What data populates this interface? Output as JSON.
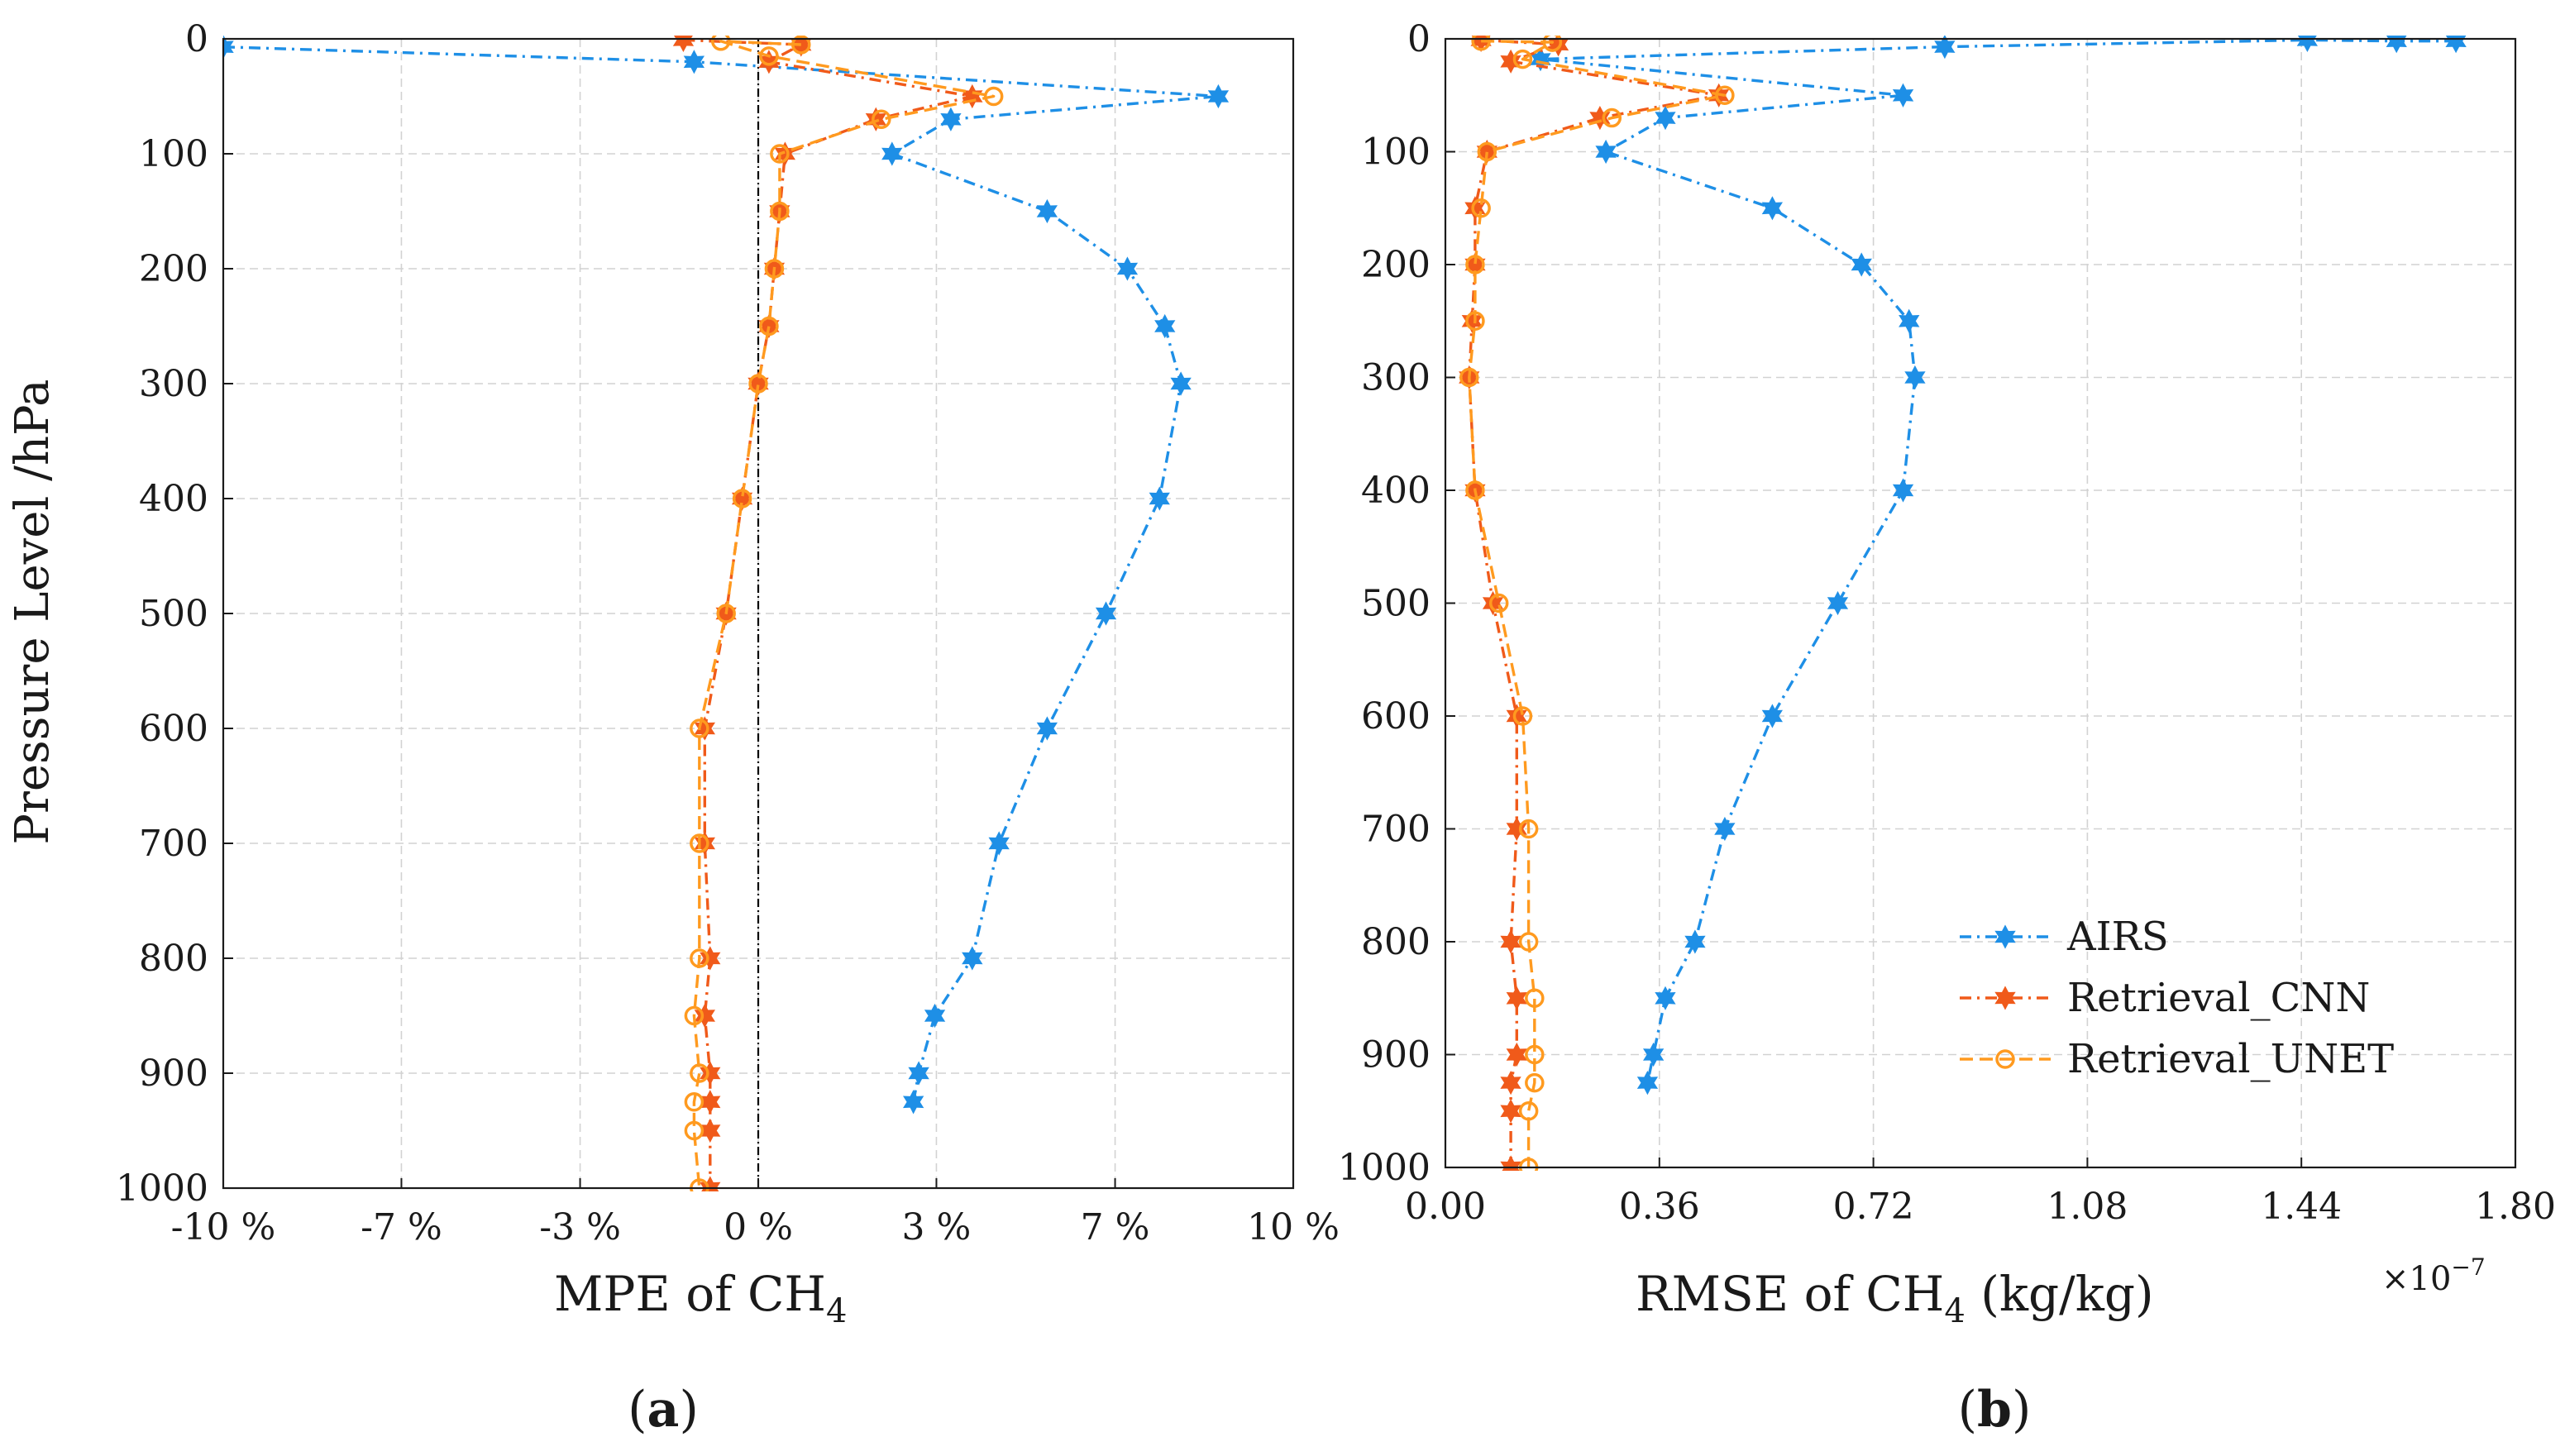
{
  "figure": {
    "y_axis_title": "Pressure Level /hPa",
    "left_xlabel_prefix": "MPE of CH",
    "right_xlabel_prefix": "RMSE of CH",
    "right_xlabel_suffix": " (kg/kg)",
    "ch_subscript": "4",
    "multiplier_base": "×10",
    "multiplier_exp": "−7",
    "panel_a_label": "a",
    "panel_b_label": "b",
    "colors": {
      "airs": "#1e8fe6",
      "cnn": "#f05a1a",
      "unet": "#ff9a1f",
      "grid": "#d2d2d2",
      "zero_line": "#000000"
    }
  },
  "chart_data": [
    {
      "type": "line",
      "panel": "a",
      "title": "",
      "xlabel": "MPE of CH4",
      "ylabel": "Pressure Level /hPa",
      "xlim": [
        -10,
        10
      ],
      "ylim": [
        1000,
        0
      ],
      "y_inverted": true,
      "grid": true,
      "reference_line_x": 0,
      "xticks": [
        -10,
        -6.67,
        -3.33,
        0,
        3.33,
        6.67,
        10
      ],
      "xtick_labels": [
        "-10 %",
        "-7 %",
        "-3 %",
        "0 %",
        "3 %",
        "7 %",
        "10 %"
      ],
      "yticks": [
        0,
        100,
        200,
        300,
        400,
        500,
        600,
        700,
        800,
        900,
        1000
      ],
      "ytick_labels": [
        "0",
        "100",
        "200",
        "300",
        "400",
        "500",
        "600",
        "700",
        "800",
        "900",
        "1000"
      ],
      "series": [
        {
          "name": "AIRS",
          "marker": "star",
          "style": "dashdot",
          "points": [
            [
              -10,
              7
            ],
            [
              -1.2,
              20
            ],
            [
              8.6,
              50
            ],
            [
              3.6,
              70
            ],
            [
              2.5,
              100
            ],
            [
              5.4,
              150
            ],
            [
              6.9,
              200
            ],
            [
              7.6,
              250
            ],
            [
              7.9,
              300
            ],
            [
              7.5,
              400
            ],
            [
              6.5,
              500
            ],
            [
              5.4,
              600
            ],
            [
              4.5,
              700
            ],
            [
              4.0,
              800
            ],
            [
              3.3,
              850
            ],
            [
              3.0,
              900
            ],
            [
              2.9,
              925
            ]
          ]
        },
        {
          "name": "Retrieval_CNN",
          "marker": "star",
          "style": "dashdot",
          "points": [
            [
              -1.4,
              1
            ],
            [
              0.8,
              5
            ],
            [
              0.2,
              20
            ],
            [
              4.0,
              50
            ],
            [
              2.2,
              70
            ],
            [
              0.5,
              100
            ],
            [
              0.4,
              150
            ],
            [
              0.3,
              200
            ],
            [
              0.2,
              250
            ],
            [
              0.0,
              300
            ],
            [
              -0.3,
              400
            ],
            [
              -0.6,
              500
            ],
            [
              -1.0,
              600
            ],
            [
              -1.0,
              700
            ],
            [
              -0.9,
              800
            ],
            [
              -1.0,
              850
            ],
            [
              -0.9,
              900
            ],
            [
              -0.9,
              925
            ],
            [
              -0.9,
              950
            ],
            [
              -0.9,
              1000
            ]
          ]
        },
        {
          "name": "Retrieval_UNET",
          "marker": "circle",
          "style": "dashed",
          "points": [
            [
              0.8,
              5
            ],
            [
              -0.7,
              2
            ],
            [
              0.2,
              15
            ],
            [
              4.4,
              50
            ],
            [
              2.3,
              70
            ],
            [
              0.4,
              100
            ],
            [
              0.4,
              150
            ],
            [
              0.3,
              200
            ],
            [
              0.2,
              250
            ],
            [
              0.0,
              300
            ],
            [
              -0.3,
              400
            ],
            [
              -0.6,
              500
            ],
            [
              -1.1,
              600
            ],
            [
              -1.1,
              700
            ],
            [
              -1.1,
              800
            ],
            [
              -1.2,
              850
            ],
            [
              -1.1,
              900
            ],
            [
              -1.2,
              925
            ],
            [
              -1.2,
              950
            ],
            [
              -1.1,
              1000
            ]
          ]
        }
      ]
    },
    {
      "type": "line",
      "panel": "b",
      "title": "",
      "xlabel": "RMSE of CH4 (kg/kg)",
      "ylabel": "",
      "x_multiplier": "1e-7",
      "xlim": [
        0,
        1.8
      ],
      "ylim": [
        1000,
        0
      ],
      "y_inverted": true,
      "grid": true,
      "xticks": [
        0,
        0.36,
        0.72,
        1.08,
        1.44,
        1.8
      ],
      "xtick_labels": [
        "0.00",
        "0.36",
        "0.72",
        "1.08",
        "1.44",
        "1.80"
      ],
      "yticks": [
        0,
        100,
        200,
        300,
        400,
        500,
        600,
        700,
        800,
        900,
        1000
      ],
      "ytick_labels": [
        "0",
        "100",
        "200",
        "300",
        "400",
        "500",
        "600",
        "700",
        "800",
        "900",
        "1000"
      ],
      "legend_position": "bottom-right",
      "series": [
        {
          "name": "AIRS",
          "marker": "star",
          "style": "dashdot",
          "points": [
            [
              1.7,
              2
            ],
            [
              1.6,
              2
            ],
            [
              1.45,
              1
            ],
            [
              0.84,
              7
            ],
            [
              0.16,
              18
            ],
            [
              0.77,
              50
            ],
            [
              0.37,
              70
            ],
            [
              0.27,
              100
            ],
            [
              0.55,
              150
            ],
            [
              0.7,
              200
            ],
            [
              0.78,
              250
            ],
            [
              0.79,
              300
            ],
            [
              0.77,
              400
            ],
            [
              0.66,
              500
            ],
            [
              0.55,
              600
            ],
            [
              0.47,
              700
            ],
            [
              0.42,
              800
            ],
            [
              0.37,
              850
            ],
            [
              0.35,
              900
            ],
            [
              0.34,
              925
            ]
          ]
        },
        {
          "name": "Retrieval_CNN",
          "marker": "star",
          "style": "dashdot",
          "points": [
            [
              0.06,
              1
            ],
            [
              0.19,
              5
            ],
            [
              0.11,
              20
            ],
            [
              0.46,
              50
            ],
            [
              0.26,
              70
            ],
            [
              0.07,
              100
            ],
            [
              0.05,
              150
            ],
            [
              0.05,
              200
            ],
            [
              0.045,
              250
            ],
            [
              0.04,
              300
            ],
            [
              0.05,
              400
            ],
            [
              0.08,
              500
            ],
            [
              0.12,
              600
            ],
            [
              0.12,
              700
            ],
            [
              0.11,
              800
            ],
            [
              0.12,
              850
            ],
            [
              0.12,
              900
            ],
            [
              0.11,
              925
            ],
            [
              0.11,
              950
            ],
            [
              0.11,
              1000
            ]
          ]
        },
        {
          "name": "Retrieval_UNET",
          "marker": "circle",
          "style": "dashed",
          "points": [
            [
              0.06,
              2
            ],
            [
              0.18,
              3
            ],
            [
              0.13,
              18
            ],
            [
              0.47,
              50
            ],
            [
              0.28,
              70
            ],
            [
              0.07,
              100
            ],
            [
              0.06,
              150
            ],
            [
              0.05,
              200
            ],
            [
              0.05,
              250
            ],
            [
              0.04,
              300
            ],
            [
              0.05,
              400
            ],
            [
              0.09,
              500
            ],
            [
              0.13,
              600
            ],
            [
              0.14,
              700
            ],
            [
              0.14,
              800
            ],
            [
              0.15,
              850
            ],
            [
              0.15,
              900
            ],
            [
              0.15,
              925
            ],
            [
              0.14,
              950
            ],
            [
              0.14,
              1000
            ]
          ]
        }
      ]
    }
  ]
}
